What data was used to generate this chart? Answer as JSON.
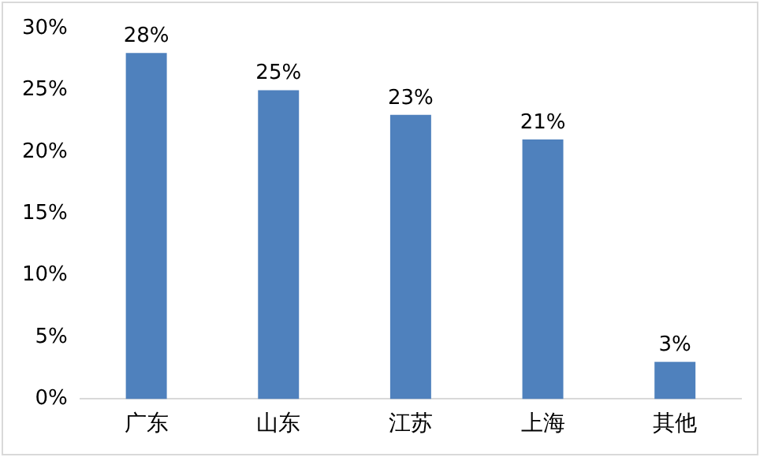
{
  "chart_data": {
    "type": "bar",
    "categories": [
      "广东",
      "山东",
      "江苏",
      "上海",
      "其他"
    ],
    "values": [
      28,
      25,
      23,
      21,
      3
    ],
    "value_labels": [
      "28%",
      "25%",
      "23%",
      "21%",
      "3%"
    ],
    "color": "#4f81bd",
    "ylim": [
      0,
      30
    ],
    "yticks": [
      {
        "value": 0,
        "label": "0%"
      },
      {
        "value": 5,
        "label": "5%"
      },
      {
        "value": 10,
        "label": "10%"
      },
      {
        "value": 15,
        "label": "15%"
      },
      {
        "value": 20,
        "label": "20%"
      },
      {
        "value": 25,
        "label": "25%"
      },
      {
        "value": 30,
        "label": "30%"
      }
    ],
    "grid": false,
    "legend": false
  }
}
